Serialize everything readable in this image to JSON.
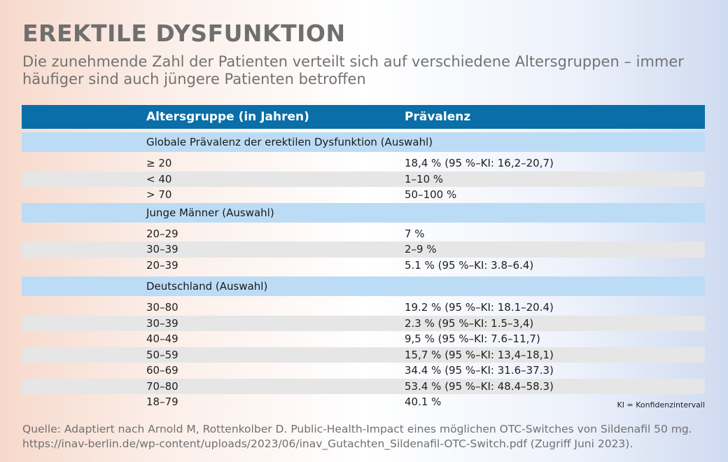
{
  "title": "EREKTILE DYSFUNKTION",
  "subtitle": "Die zunehmende Zahl der Patienten verteilt sich auf verschiedene Altersgruppen – immer häufiger sind auch jüngere Patienten betroffen",
  "table": {
    "header": {
      "col1": "Altersgruppe (in Jahren)",
      "col2": "Prävalenz"
    },
    "sections": [
      {
        "title": "Globale Prävalenz der erektilen Dysfunktion (Auswahl)",
        "rows": [
          {
            "age": "≥ 20",
            "value": "18,4 % (95 %–KI: 16,2–20,7)"
          },
          {
            "age": "< 40",
            "value": "1–10 %"
          },
          {
            "age": "> 70",
            "value": "50–100 %"
          }
        ]
      },
      {
        "title": "Junge Männer (Auswahl)",
        "rows": [
          {
            "age": "20–29",
            "value": "7 %"
          },
          {
            "age": "30–39",
            "value": "2–9 %"
          },
          {
            "age": "20–39",
            "value": "5.1 % (95 %–KI: 3.8–6.4)"
          }
        ]
      },
      {
        "title": "Deutschland (Auswahl)",
        "rows": [
          {
            "age": "30–80",
            "value": "19.2 % (95 %–KI: 18.1–20.4)"
          },
          {
            "age": "30–39",
            "value": "2.3 % (95 %–KI: 1.5–3,4)"
          },
          {
            "age": "40–49",
            "value": "9,5 % (95 %–KI: 7.6–11,7)"
          },
          {
            "age": "50–59",
            "value": "15,7 % (95 %–KI: 13,4–18,1)"
          },
          {
            "age": "60–69",
            "value": "34.4 % (95 %–KI: 31.6–37.3)"
          },
          {
            "age": "70–80",
            "value": "53.4 % (95 %–KI: 48.4–58.3)"
          },
          {
            "age": "18–79",
            "value": "40.1 %"
          }
        ]
      }
    ]
  },
  "footnote": "KI = Konfidenzintervall",
  "source": {
    "line1": "Quelle: Adaptiert nach Arnold M, Rottenkolber D. Public-Health-Impact eines möglichen OTC-Switches von Sildenafil 50 mg.",
    "line2": "https://inav-berlin.de/wp-content/uploads/2023/06/inav_Gutachten_Sildenafil-OTC-Switch.pdf (Zugriff Juni 2023)."
  }
}
